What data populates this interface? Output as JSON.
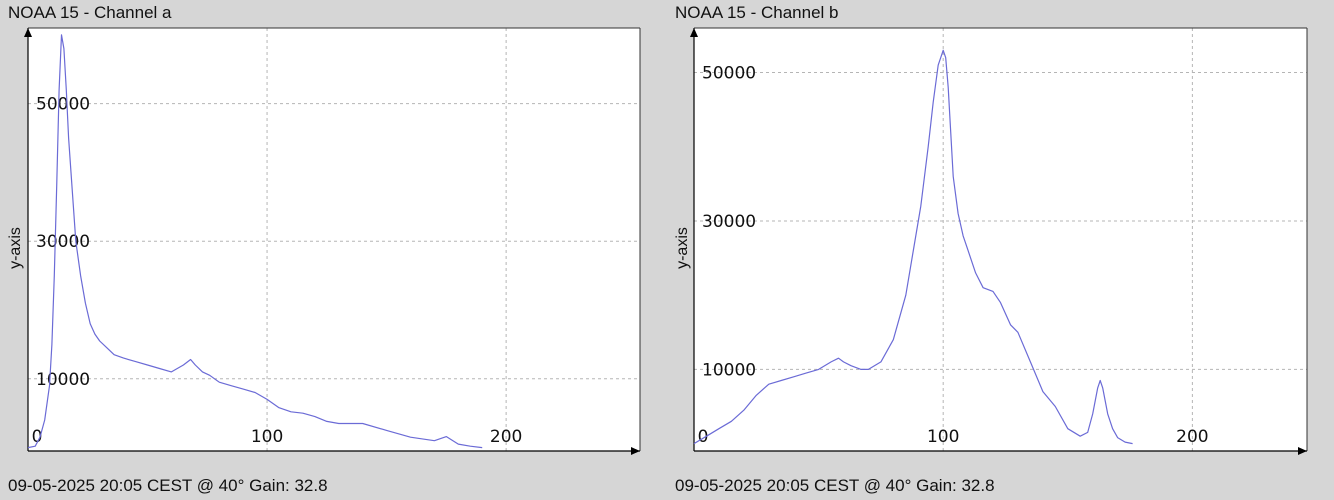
{
  "charts": [
    {
      "title": "NOAA 15 - Channel a",
      "footer": "09-05-2025 20:05 CEST @ 40° Gain: 32.8",
      "chart_data": {
        "type": "line",
        "title": "NOAA 15 - Channel a",
        "xlabel": "",
        "ylabel": "y-axis",
        "xlim": [
          0,
          256
        ],
        "ylim": [
          -500,
          61000
        ],
        "x_ticks": [
          0,
          100,
          200
        ],
        "y_ticks": [
          10000,
          30000,
          50000
        ],
        "x_tick_labels": [
          "0",
          "100",
          "200"
        ],
        "y_tick_labels": [
          "10000",
          "30000",
          "50000"
        ],
        "grid": true,
        "line_color": "#6b6bd6",
        "series": [
          {
            "x": [
              0,
              3,
              5,
              7,
              9,
              10,
              11,
              12,
              13,
              14,
              15,
              16,
              17,
              18,
              19,
              20,
              22,
              24,
              26,
              28,
              30,
              33,
              36,
              40,
              45,
              50,
              55,
              60,
              65,
              68,
              70,
              73,
              76,
              80,
              85,
              90,
              95,
              100,
              105,
              110,
              115,
              120,
              125,
              130,
              140,
              150,
              160,
              170,
              175,
              180,
              185,
              190
            ],
            "y": [
              0,
              200,
              1500,
              4000,
              9000,
              15000,
              25000,
              38000,
              52000,
              60000,
              58000,
              52000,
              45000,
              40000,
              35000,
              30000,
              25000,
              21000,
              18000,
              16500,
              15500,
              14500,
              13500,
              13000,
              12500,
              12000,
              11500,
              11000,
              12000,
              12800,
              12000,
              11000,
              10500,
              9500,
              9000,
              8500,
              8000,
              7000,
              5800,
              5200,
              5000,
              4500,
              3800,
              3500,
              3500,
              2500,
              1500,
              1000,
              1600,
              500,
              200,
              0
            ]
          }
        ]
      }
    },
    {
      "title": "NOAA 15 - Channel b",
      "footer": "09-05-2025 20:05 CEST @ 40° Gain: 32.8",
      "chart_data": {
        "type": "line",
        "title": "NOAA 15 - Channel b",
        "xlabel": "",
        "ylabel": "y-axis",
        "xlim": [
          0,
          246
        ],
        "ylim": [
          -1000,
          56000
        ],
        "x_ticks": [
          0,
          100,
          200
        ],
        "y_ticks": [
          10000,
          30000,
          50000
        ],
        "x_tick_labels": [
          "0",
          "100",
          "200"
        ],
        "y_tick_labels": [
          "10000",
          "30000",
          "50000"
        ],
        "grid": true,
        "line_color": "#6b6bd6",
        "series": [
          {
            "x": [
              0,
              5,
              10,
              15,
              20,
              25,
              30,
              35,
              40,
              45,
              50,
              55,
              58,
              60,
              63,
              67,
              70,
              75,
              80,
              85,
              88,
              91,
              94,
              96,
              98,
              100,
              101,
              102,
              103,
              104,
              106,
              108,
              110,
              113,
              116,
              120,
              123,
              127,
              130,
              135,
              140,
              145,
              150,
              155,
              158,
              160,
              162,
              163,
              164,
              166,
              168,
              170,
              173,
              176
            ],
            "y": [
              0,
              1000,
              2000,
              3000,
              4500,
              6500,
              8000,
              8500,
              9000,
              9500,
              10000,
              11000,
              11500,
              11000,
              10500,
              10000,
              10000,
              11000,
              14000,
              20000,
              26000,
              32000,
              40000,
              46000,
              51000,
              53000,
              52000,
              48000,
              42000,
              36000,
              31000,
              28000,
              26000,
              23000,
              21000,
              20500,
              19000,
              16000,
              15000,
              11000,
              7000,
              5000,
              2000,
              1000,
              1500,
              4000,
              7500,
              8500,
              7500,
              4000,
              2000,
              800,
              200,
              0
            ]
          }
        ]
      }
    }
  ]
}
